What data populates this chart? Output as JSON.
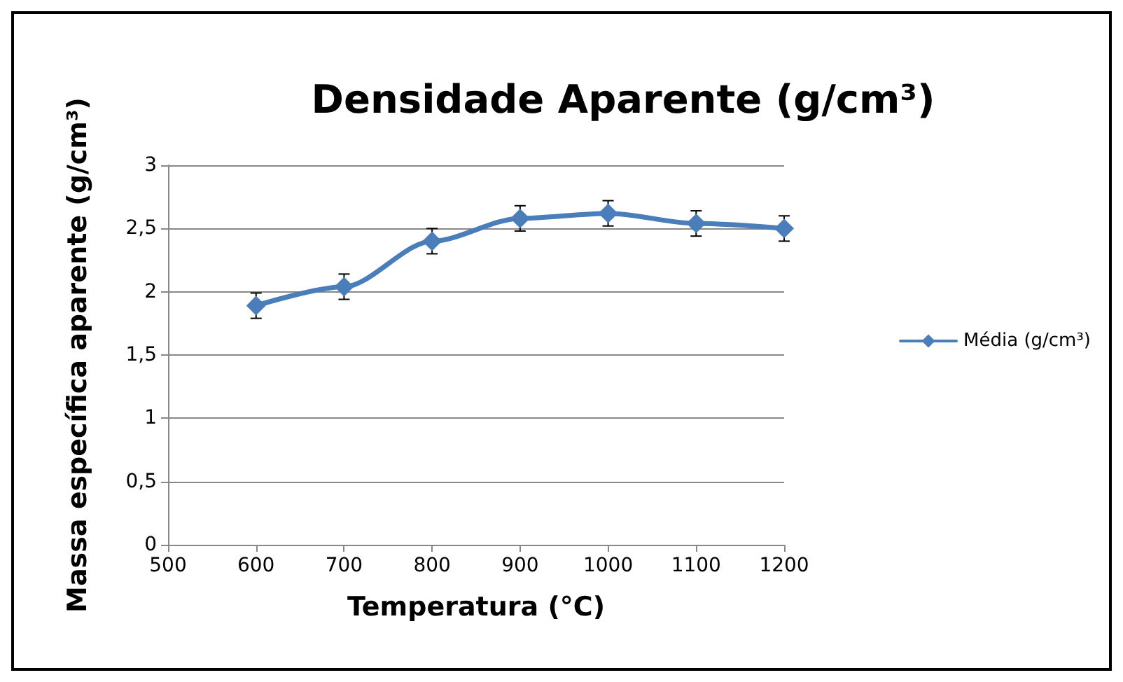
{
  "chart_data": {
    "type": "line",
    "title": "Densidade Aparente (g/cm³)",
    "xlabel": "Temperatura (°C)",
    "ylabel": "Massa específica aparente (g/cm³)",
    "x": [
      600,
      700,
      800,
      900,
      1000,
      1100,
      1200
    ],
    "series": [
      {
        "name": "Média (g/cm³)",
        "color": "#4a7ebb",
        "values": [
          1.89,
          2.04,
          2.4,
          2.58,
          2.62,
          2.54,
          2.5
        ],
        "errors": [
          0.1,
          0.1,
          0.1,
          0.1,
          0.1,
          0.1,
          0.1
        ]
      }
    ],
    "xlim": [
      500,
      1200
    ],
    "xticks": [
      500,
      600,
      700,
      800,
      900,
      1000,
      1100,
      1200
    ],
    "ylim": [
      0,
      3
    ],
    "yticks": [
      0,
      {
        "value": 0.5,
        "label": "0,5"
      },
      1,
      {
        "value": 1.5,
        "label": "1,5"
      },
      2,
      {
        "value": 2.5,
        "label": "2,5"
      },
      3
    ],
    "grid": "y",
    "legend": "right",
    "marker": "diamond",
    "line_style": "solid"
  }
}
